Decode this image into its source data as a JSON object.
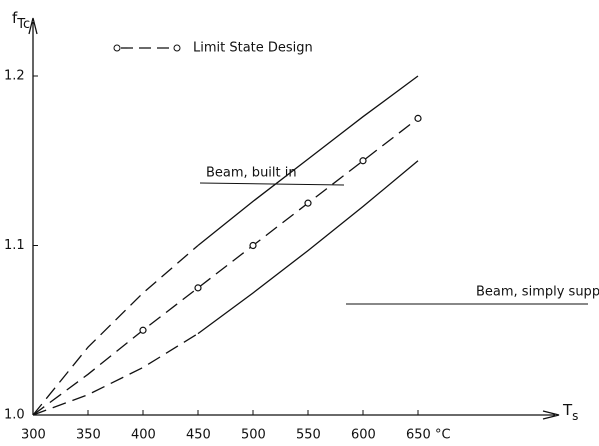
{
  "chart_data": {
    "type": "line",
    "y_label": "f",
    "y_label_sub": "Tc",
    "x_label": "T",
    "x_label_sub": "s",
    "x": [
      300,
      350,
      400,
      450,
      500,
      550,
      600,
      650
    ],
    "xlim": [
      300,
      650
    ],
    "xticks": [
      300,
      350,
      400,
      450,
      500,
      550,
      600,
      {
        "value": 650,
        "label": "650 °C"
      }
    ],
    "ylim": [
      1.0,
      1.2
    ],
    "yticks": [
      {
        "value": 1,
        "label": "1.0"
      },
      1.1,
      1.2
    ],
    "series": [
      {
        "name": "Beam, built in",
        "color": "#111111",
        "dashed_to": 450,
        "values": [
          1.0,
          1.04,
          1.072,
          1.1,
          1.126,
          1.151,
          1.176,
          1.2
        ]
      },
      {
        "name": "Limit State Design",
        "color": "#111111",
        "markers_from": 400,
        "values": [
          1.0,
          1.024,
          1.05,
          1.075,
          1.1,
          1.125,
          1.15,
          1.175
        ]
      },
      {
        "name": "Beam, simply supported",
        "color": "#111111",
        "dashed_to": 450,
        "values": [
          1.0,
          1.012,
          1.028,
          1.048,
          1.072,
          1.097,
          1.123,
          1.15
        ]
      }
    ]
  }
}
